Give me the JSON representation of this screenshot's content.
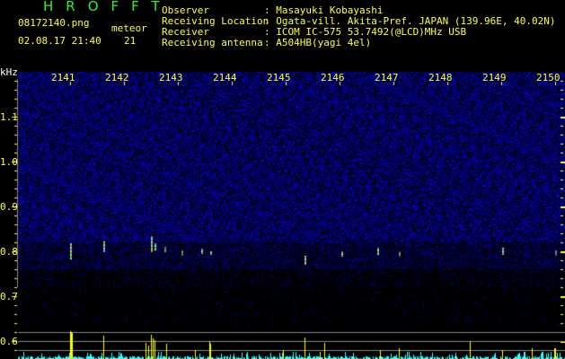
{
  "header": {
    "app_title": "HROFFT",
    "filename": "08172140.png",
    "datetime": "02.08.17 21:40",
    "meteor_label": "meteor",
    "meteor_count": "21",
    "info": [
      {
        "label": "Observer",
        "value": ": Masayuki Kobayashi"
      },
      {
        "label": "Receiving Location",
        "value": ": Ogata-vill. Akita-Pref. JAPAN (139.96E, 40.02N)"
      },
      {
        "label": "Receiver",
        "value": ": ICOM IC-575 53.7492(@LCD)MHz USB"
      },
      {
        "label": "Receiving antenna",
        "value": ": A504HB(yagi 4el)"
      }
    ]
  },
  "axis": {
    "unit": "kHz",
    "y_ticks": [
      "1.1",
      "1.0",
      "0.9",
      "0.8",
      "0.7",
      "0.6"
    ],
    "time_ticks": [
      "2141",
      "2142",
      "2143",
      "2144",
      "2145",
      "2146",
      "2147",
      "2148",
      "2149",
      "2150"
    ]
  },
  "colors": {
    "text": "#ffff33",
    "title": "#33ee33",
    "noise": "#1a1aff",
    "bars": "#ffff00",
    "baseline": "#33ffff"
  }
}
